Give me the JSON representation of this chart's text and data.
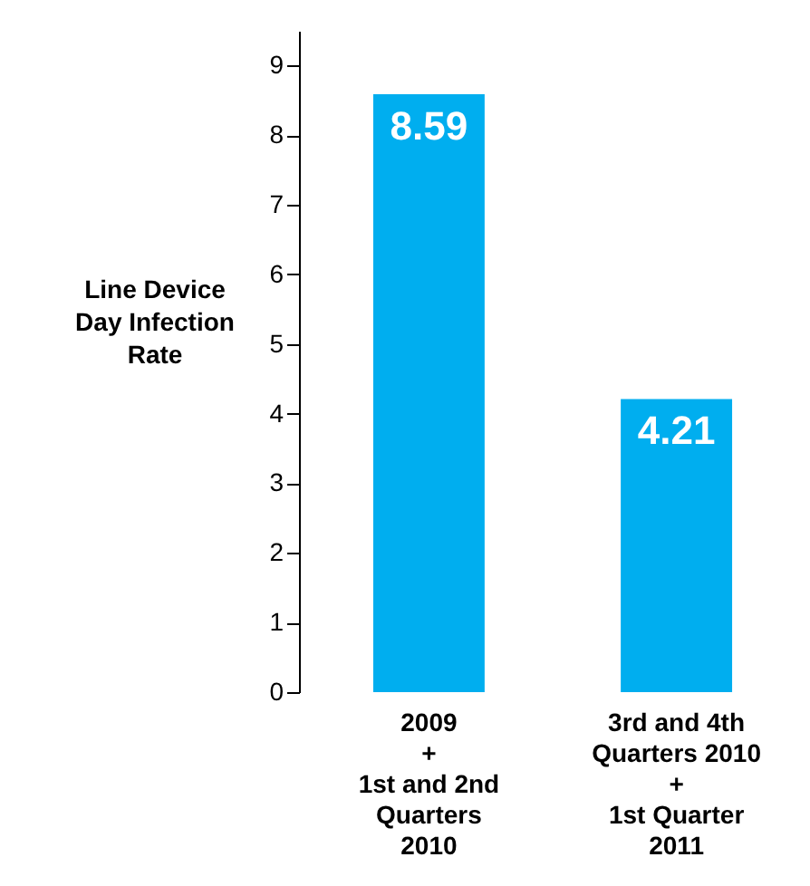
{
  "chart_data": {
    "type": "bar",
    "categories": [
      "2009\n+\n1st and 2nd\nQuarters\n2010",
      "3rd and 4th\nQuarters 2010\n+\n1st Quarter\n2011"
    ],
    "values": [
      8.59,
      4.21
    ],
    "color": "#00aeef",
    "ylabel": "Line Device\nDay Infection\nRate",
    "ylim": [
      0,
      9.5
    ],
    "yticks": [
      0,
      1,
      2,
      3,
      4,
      5,
      6,
      7,
      8,
      9
    ],
    "data_labels": true
  }
}
